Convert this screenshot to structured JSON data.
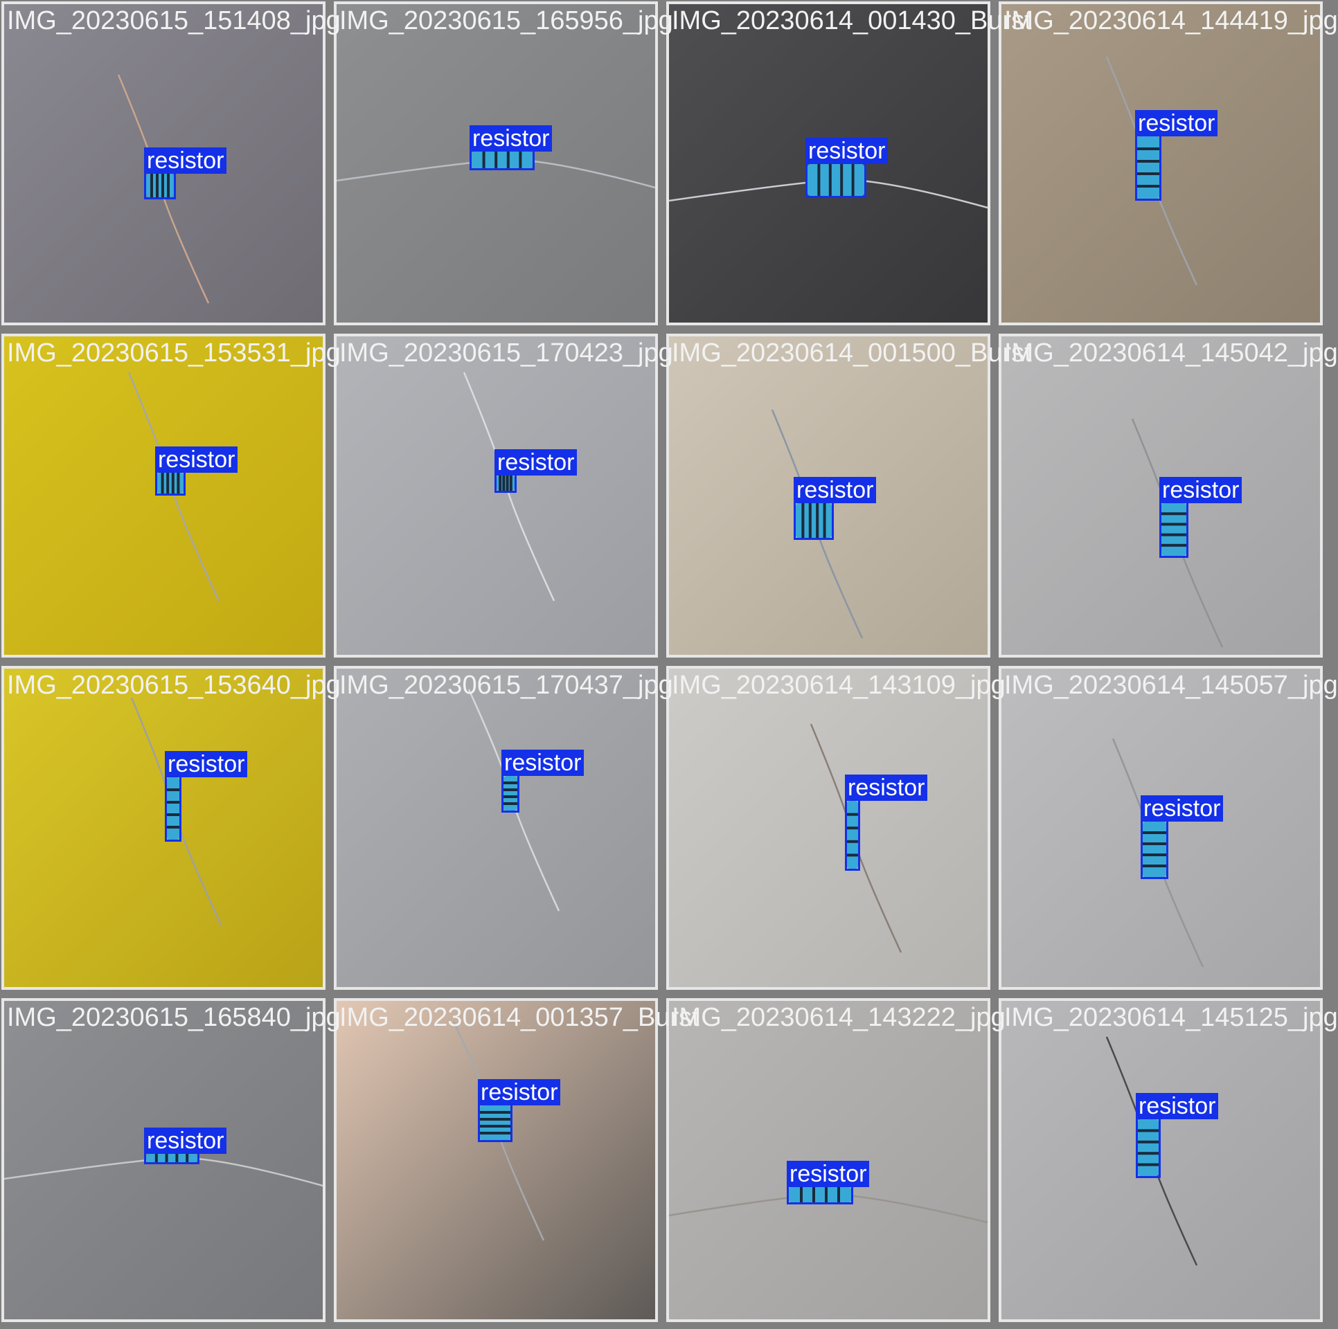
{
  "grid": {
    "columns": 4,
    "rows": 4
  },
  "label_color": "#1430e8",
  "tiles": [
    {
      "filename": "IMG_20230615_151408_jpg",
      "label": "resistor",
      "scene": {
        "bg": "#8a8890",
        "bg2": "#6f6c74",
        "wire": "#c9a58e",
        "orient": "v"
      }
    },
    {
      "filename": "IMG_20230615_165956_jpg",
      "label": "resistor",
      "scene": {
        "bg": "#8e8f91",
        "bg2": "#7a7b7d",
        "wire": "#b9bdc2",
        "orient": "h"
      }
    },
    {
      "filename": "IMG_20230614_001430_Burst",
      "label": "resistor",
      "scene": {
        "bg": "#4f4f52",
        "bg2": "#37373a",
        "wire": "#c9ccd0",
        "orient": "h"
      }
    },
    {
      "filename": "IMG_20230614_144419_jpg",
      "label": "resistor",
      "scene": {
        "bg": "#a89a86",
        "bg2": "#8e816f",
        "wire": "#9ea3a8",
        "orient": "v"
      }
    },
    {
      "filename": "IMG_20230615_153531_jpg",
      "label": "resistor",
      "scene": {
        "bg": "#d7c21e",
        "bg2": "#c2a914",
        "wire": "#a7a8a5",
        "orient": "v"
      }
    },
    {
      "filename": "IMG_20230615_170423_jpg",
      "label": "resistor",
      "scene": {
        "bg": "#b3b4b8",
        "bg2": "#9c9da2",
        "wire": "#d9dbde",
        "orient": "v"
      }
    },
    {
      "filename": "IMG_20230614_001500_Burst",
      "label": "resistor",
      "scene": {
        "bg": "#cfc6b7",
        "bg2": "#b2a897",
        "wire": "#8b96a3",
        "orient": "v"
      }
    },
    {
      "filename": "IMG_20230614_145042_jpg",
      "label": "resistor",
      "scene": {
        "bg": "#b9b9ba",
        "bg2": "#a3a3a5",
        "wire": "#8f9296",
        "orient": "v"
      }
    },
    {
      "filename": "IMG_20230615_153640_jpg",
      "label": "resistor",
      "scene": {
        "bg": "#d9c628",
        "bg2": "#b9a317",
        "wire": "#a1a19d",
        "orient": "v"
      }
    },
    {
      "filename": "IMG_20230615_170437_jpg",
      "label": "resistor",
      "scene": {
        "bg": "#aeafb2",
        "bg2": "#95969a",
        "wire": "#d5d7da",
        "orient": "v"
      }
    },
    {
      "filename": "IMG_20230614_143109_jpg",
      "label": "resistor",
      "scene": {
        "bg": "#cdcbc8",
        "bg2": "#b5b3b0",
        "wire": "#8a7f78",
        "orient": "v"
      }
    },
    {
      "filename": "IMG_20230614_145057_jpg",
      "label": "resistor",
      "scene": {
        "bg": "#bdbdbf",
        "bg2": "#a6a6a8",
        "wire": "#93969a",
        "orient": "v"
      }
    },
    {
      "filename": "IMG_20230615_165840_jpg",
      "label": "resistor",
      "scene": {
        "bg": "#8e8f92",
        "bg2": "#77787b",
        "wire": "#c5c8cb",
        "orient": "h"
      }
    },
    {
      "filename": "IMG_20230614_001357_Burst",
      "label": "resistor",
      "scene": {
        "bg": "#e2c7b3",
        "bg2": "#5e5a57",
        "wire": "#a6a9ad",
        "orient": "v"
      }
    },
    {
      "filename": "IMG_20230614_143222_jpg",
      "label": "resistor",
      "scene": {
        "bg": "#b7b6b5",
        "bg2": "#a2a1a0",
        "wire": "#9a9490",
        "orient": "h"
      }
    },
    {
      "filename": "IMG_20230614_145125_jpg",
      "label": "resistor",
      "scene": {
        "bg": "#b8b8ba",
        "bg2": "#a1a1a3",
        "wire": "#4a4a4c",
        "orient": "v"
      }
    }
  ]
}
